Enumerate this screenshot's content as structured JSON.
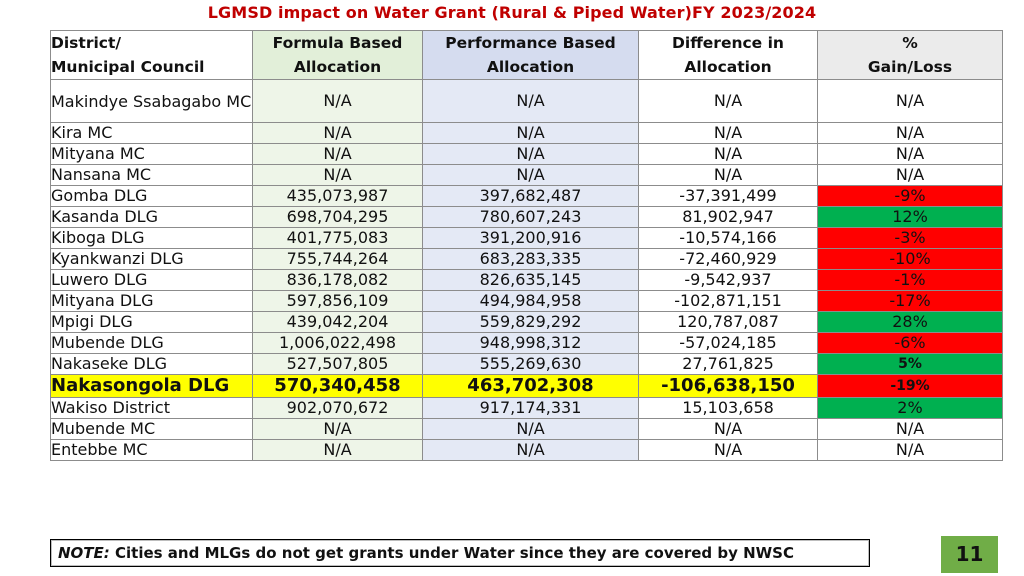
{
  "title": "LGMSD impact on Water Grant (Rural & Piped Water)FY 2023/2024",
  "headers": {
    "district": [
      "District/",
      "Municipal Council"
    ],
    "formula": [
      "Formula Based",
      "Allocation"
    ],
    "performance": [
      "Performance Based",
      "Allocation"
    ],
    "difference": [
      "Difference in",
      "Allocation"
    ],
    "gain": [
      "%",
      "Gain/Loss"
    ]
  },
  "rows": [
    {
      "district": "Makindye Ssabagabo MC",
      "formula": "N/A",
      "performance": "N/A",
      "difference": "N/A",
      "gain": "N/A"
    },
    {
      "district": "Kira MC",
      "formula": "N/A",
      "performance": "N/A",
      "difference": "N/A",
      "gain": "N/A"
    },
    {
      "district": "Mityana MC",
      "formula": "N/A",
      "performance": "N/A",
      "difference": "N/A",
      "gain": "N/A"
    },
    {
      "district": "Nansana MC",
      "formula": "N/A",
      "performance": "N/A",
      "difference": "N/A",
      "gain": "N/A"
    },
    {
      "district": "Gomba DLG",
      "formula": "435,073,987",
      "performance": "397,682,487",
      "difference": "-37,391,499",
      "gain": "-9%"
    },
    {
      "district": "Kasanda DLG",
      "formula": "698,704,295",
      "performance": "780,607,243",
      "difference": "81,902,947",
      "gain": "12%"
    },
    {
      "district": "Kiboga DLG",
      "formula": "401,775,083",
      "performance": "391,200,916",
      "difference": "-10,574,166",
      "gain": "-3%"
    },
    {
      "district": "Kyankwanzi DLG",
      "formula": "755,744,264",
      "performance": "683,283,335",
      "difference": "-72,460,929",
      "gain": "-10%"
    },
    {
      "district": "Luwero DLG",
      "formula": "836,178,082",
      "performance": "826,635,145",
      "difference": "-9,542,937",
      "gain": "-1%"
    },
    {
      "district": "Mityana DLG",
      "formula": "597,856,109",
      "performance": "494,984,958",
      "difference": "-102,871,151",
      "gain": "-17%"
    },
    {
      "district": "Mpigi DLG",
      "formula": "439,042,204",
      "performance": "559,829,292",
      "difference": "120,787,087",
      "gain": "28%"
    },
    {
      "district": "Mubende DLG",
      "formula": "1,006,022,498",
      "performance": "948,998,312",
      "difference": "-57,024,185",
      "gain": "-6%"
    },
    {
      "district": "Nakaseke DLG",
      "formula": "527,507,805",
      "performance": "555,269,630",
      "difference": "27,761,825",
      "gain": "5%"
    },
    {
      "district": "Nakasongola DLG",
      "formula": "570,340,458",
      "performance": "463,702,308",
      "difference": "-106,638,150",
      "gain": "-19%"
    },
    {
      "district": "Wakiso District",
      "formula": "902,070,672",
      "performance": "917,174,331",
      "difference": "15,103,658",
      "gain": "2%"
    },
    {
      "district": "Mubende MC",
      "formula": "N/A",
      "performance": "N/A",
      "difference": "N/A",
      "gain": "N/A"
    },
    {
      "district": "Entebbe MC",
      "formula": "N/A",
      "performance": "N/A",
      "difference": "N/A",
      "gain": "N/A"
    }
  ],
  "colors": {
    "title": "#c00000",
    "loss": "#ff0000",
    "gain": "#00b050",
    "highlight": "#ffff00",
    "page_badge": "#70ad47"
  },
  "note": {
    "label": "NOTE:",
    "text": " Cities and MLGs do not get grants under Water since they are covered by NWSC"
  },
  "page_number": "11"
}
